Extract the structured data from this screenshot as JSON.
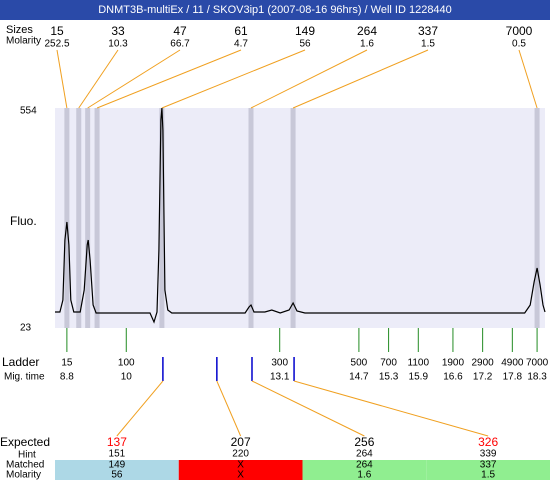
{
  "header": {
    "title": "DNMT3B-multiEx / 11 / SKOV3ip1 (2007-08-16 96hrs) / Well ID 1228440"
  },
  "chart_data": {
    "type": "line",
    "y_label": "Fluo.",
    "ylim": [
      23,
      554
    ],
    "yticks": [
      23,
      554
    ],
    "xlim": [
      8.56,
      18.46
    ],
    "color": "#000000",
    "background": "#ececf8",
    "x": [
      8.56,
      8.66,
      8.72,
      8.76,
      8.8,
      8.84,
      8.88,
      8.94,
      9.07,
      9.15,
      9.21,
      9.23,
      9.27,
      9.33,
      9.39,
      10.08,
      10.48,
      10.56,
      10.62,
      10.66,
      10.7,
      10.72,
      10.74,
      10.78,
      10.84,
      10.92,
      12.4,
      12.48,
      12.52,
      12.58,
      12.8,
      12.94,
      13.11,
      13.29,
      13.37,
      13.45,
      13.61,
      18.05,
      18.16,
      18.24,
      18.3,
      18.36,
      18.42,
      18.46
    ],
    "values": [
      61.6,
      61.6,
      90.6,
      235.4,
      278.8,
      223.3,
      90.6,
      61.6,
      61.6,
      114.7,
      223.3,
      235.4,
      187.1,
      78.5,
      59.2,
      59.2,
      59.2,
      37.5,
      61.6,
      211.3,
      525.0,
      554,
      500.9,
      114.7,
      66.4,
      59.2,
      59.2,
      73.7,
      78.5,
      61.6,
      61.6,
      66.4,
      59.2,
      66.4,
      83.3,
      64.0,
      59.2,
      59.2,
      78.5,
      134.0,
      167.8,
      126.8,
      78.5,
      61.6
    ]
  },
  "peaks": {
    "row_labels": [
      "Sizes",
      "Molarity"
    ],
    "sizes": [
      15,
      33,
      47,
      61,
      149,
      264,
      337,
      7000
    ],
    "molarity": [
      252.5,
      10.3,
      66.7,
      4.7,
      56,
      1.6,
      1.5,
      0.5
    ],
    "times": [
      8.8,
      9.04,
      9.22,
      9.41,
      10.72,
      12.52,
      13.37,
      18.3
    ]
  },
  "ladder": {
    "row_labels": [
      "Ladder",
      "Mig. time"
    ],
    "sizes": [
      15,
      100,
      300,
      500,
      700,
      1100,
      1900,
      2900,
      4900,
      7000
    ],
    "times": [
      8.8,
      10,
      13.1,
      14.7,
      15.3,
      15.9,
      16.6,
      17.2,
      17.8,
      18.3
    ]
  },
  "expected": {
    "row_labels": [
      "Expected",
      "Hint",
      "Matched",
      "Molarity"
    ],
    "expected": [
      137,
      207,
      256,
      326
    ],
    "expected_colors": [
      "#ff0000",
      "#000000",
      "#000000",
      "#ff0000"
    ],
    "times": [
      10.74,
      11.83,
      12.54,
      13.39
    ],
    "hint": [
      151,
      220,
      264,
      339
    ],
    "matched": [
      149,
      "X",
      264,
      337
    ],
    "molarity": [
      56,
      "X",
      1.6,
      1.5
    ],
    "status_colors": [
      "#add8e6",
      "#ff0000",
      "#90ee90",
      "#90ee90"
    ]
  }
}
